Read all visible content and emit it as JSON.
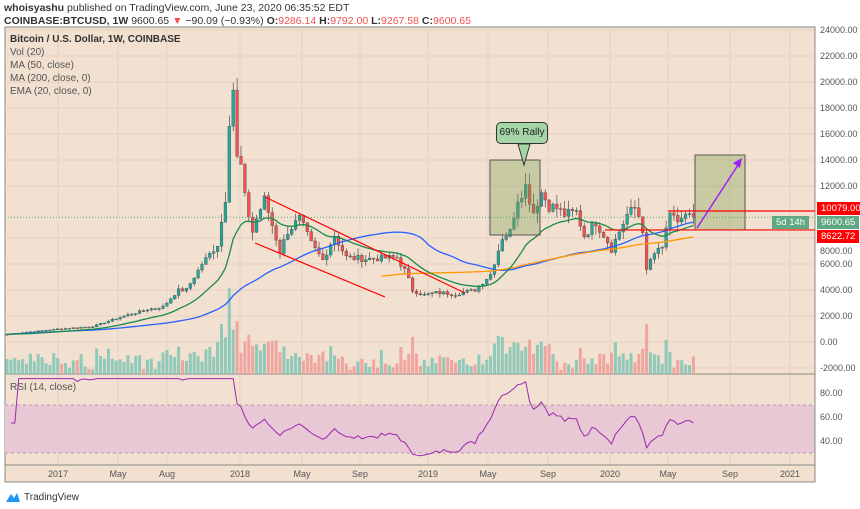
{
  "header": {
    "author": "whoisyashu",
    "published": "published on TradingView.com, June 23, 2020 06:35:52 EDT",
    "symbol": "COINBASE:BTCUSD, 1W",
    "last": "9600.65",
    "change": "−90.09 (−0.93%)",
    "o_label": "O:",
    "o": "9286.14",
    "h_label": "H:",
    "h": "9792.00",
    "l_label": "L:",
    "l": "9267.58",
    "c_label": "C:",
    "c": "9600.65"
  },
  "legend": {
    "title": "Bitcoin / U.S. Dollar, 1W, COINBASE",
    "items": [
      "Vol (20)",
      "MA (50, close)",
      "MA (200, close, 0)",
      "EMA (20, close, 0)"
    ]
  },
  "rsi_label": "RSI (14, close)",
  "annotation": "69% Rally",
  "tags": {
    "resistance": "10079.00",
    "price": "9600.65",
    "countdown": "5d 14h",
    "support": "8622.72"
  },
  "colors": {
    "up": "#26a69a",
    "down": "#ef5350",
    "bg": "#f2e0d0",
    "ma50": "#2962ff",
    "ma200": "#ff9800",
    "ema20": "#1b8a4a",
    "rsi": "#9c27b0"
  },
  "price_axis": [
    "24000.00",
    "22000.00",
    "20000.00",
    "18000.00",
    "16000.00",
    "14000.00",
    "12000.00",
    "8000.00",
    "6000.00",
    "4000.00",
    "2000.00",
    "0.00",
    "-2000.00"
  ],
  "rsi_axis": [
    "80.00",
    "60.00",
    "40.00"
  ],
  "time_axis": [
    "2017",
    "May",
    "Aug",
    "2018",
    "May",
    "Sep",
    "2019",
    "May",
    "Sep",
    "2020",
    "May",
    "Sep",
    "2021"
  ],
  "brand": "TradingView",
  "chart_data": {
    "type": "candlestick",
    "interval": "1W",
    "keypoints_week_price": [
      [
        0,
        600
      ],
      [
        13,
        1000
      ],
      [
        22,
        1200
      ],
      [
        30,
        2000
      ],
      [
        36,
        2500
      ],
      [
        40,
        2700
      ],
      [
        44,
        4000
      ],
      [
        46,
        4000
      ],
      [
        50,
        6000
      ],
      [
        54,
        7500
      ],
      [
        56,
        11000
      ],
      [
        57,
        17000
      ],
      [
        58,
        19500
      ],
      [
        59,
        14000
      ],
      [
        60,
        13500
      ],
      [
        61,
        11000
      ],
      [
        63,
        8500
      ],
      [
        64,
        9500
      ],
      [
        66,
        11000
      ],
      [
        68,
        9000
      ],
      [
        70,
        7000
      ],
      [
        72,
        8500
      ],
      [
        75,
        9500
      ],
      [
        78,
        7500
      ],
      [
        81,
        6300
      ],
      [
        84,
        8200
      ],
      [
        87,
        6500
      ],
      [
        92,
        6400
      ],
      [
        100,
        6500
      ],
      [
        102,
        5500
      ],
      [
        104,
        4000
      ],
      [
        107,
        3600
      ],
      [
        110,
        3800
      ],
      [
        115,
        3700
      ],
      [
        120,
        4000
      ],
      [
        124,
        5200
      ],
      [
        127,
        8000
      ],
      [
        129,
        8500
      ],
      [
        131,
        11000
      ],
      [
        133,
        12000
      ],
      [
        135,
        10000
      ],
      [
        137,
        11500
      ],
      [
        139,
        10500
      ],
      [
        141,
        10300
      ],
      [
        143,
        9800
      ],
      [
        146,
        10000
      ],
      [
        148,
        8200
      ],
      [
        151,
        9200
      ],
      [
        153,
        8300
      ],
      [
        155,
        7200
      ],
      [
        157,
        8500
      ],
      [
        159,
        9800
      ],
      [
        161,
        10300
      ],
      [
        162,
        9700
      ],
      [
        163,
        8700
      ],
      [
        164,
        5300
      ],
      [
        165,
        6300
      ],
      [
        166,
        6800
      ],
      [
        168,
        7200
      ],
      [
        169,
        8800
      ],
      [
        170,
        9600
      ],
      [
        172,
        9300
      ],
      [
        174,
        9700
      ],
      [
        176,
        9600
      ]
    ],
    "ylim": [
      -2000,
      24000
    ],
    "rsi_ylim": [
      20,
      95
    ]
  }
}
